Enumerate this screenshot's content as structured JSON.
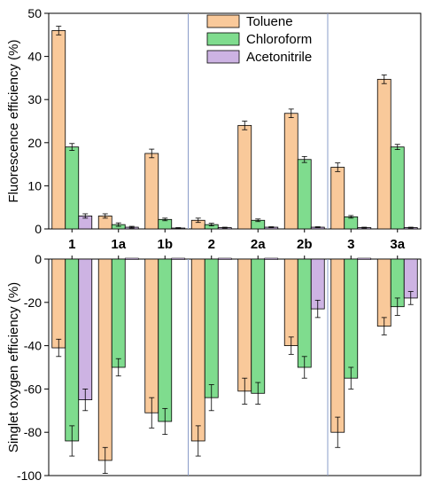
{
  "chart_data": {
    "type": "bar",
    "categories": [
      "1",
      "1a",
      "1b",
      "2",
      "2a",
      "2b",
      "3",
      "3a"
    ],
    "series_colors": [
      "#f9c99a",
      "#7fdc8e",
      "#cdb3e3"
    ],
    "group_separators_after_category": [
      "1b",
      "2b"
    ],
    "top_panel": {
      "ylabel": "Fluorescence efficiency (%)",
      "ylim": [
        0,
        50
      ],
      "yticks": [
        0,
        10,
        20,
        30,
        40,
        50
      ],
      "series": [
        {
          "name": "Toluene",
          "values": [
            46,
            3,
            17.5,
            2,
            24,
            26.8,
            14.3,
            34.7
          ],
          "errors": [
            1,
            0.5,
            1,
            0.5,
            1,
            1,
            1,
            1
          ]
        },
        {
          "name": "Chloroform",
          "values": [
            19,
            1,
            2.2,
            1,
            2,
            16.1,
            2.8,
            19
          ],
          "errors": [
            0.8,
            0.4,
            0.3,
            0.3,
            0.3,
            0.7,
            0.3,
            0.6
          ]
        },
        {
          "name": "Acetonitrile",
          "values": [
            3,
            0.4,
            0.2,
            0.3,
            0.4,
            0.4,
            0.3,
            0.3
          ],
          "errors": [
            0.5,
            0.2,
            0.1,
            0.1,
            0.1,
            0.1,
            0.1,
            0.1
          ]
        }
      ]
    },
    "bottom_panel": {
      "ylabel": "Singlet oxygen efficiency (%)",
      "ylim": [
        -100,
        0
      ],
      "yticks": [
        0,
        -20,
        -40,
        -60,
        -80,
        -100
      ],
      "series": [
        {
          "name": "Toluene",
          "values": [
            -41,
            -93,
            -71,
            -84,
            -61,
            -40,
            -80,
            -31
          ],
          "errors": [
            4,
            6,
            7,
            7,
            6,
            4,
            7,
            4
          ]
        },
        {
          "name": "Chloroform",
          "values": [
            -84,
            -50,
            -75,
            -64,
            -62,
            -50,
            -55,
            -22
          ],
          "errors": [
            7,
            4,
            6,
            6,
            5,
            5,
            5,
            4
          ]
        },
        {
          "name": "Acetonitrile",
          "values": [
            -65,
            0,
            0,
            0,
            0,
            -23,
            0,
            -18
          ],
          "errors": [
            5,
            0,
            0,
            0,
            0,
            4,
            0,
            3
          ]
        }
      ]
    },
    "legend": {
      "placement": "top-center",
      "entries": [
        "Toluene",
        "Chloroform",
        "Acetonitrile"
      ]
    }
  }
}
